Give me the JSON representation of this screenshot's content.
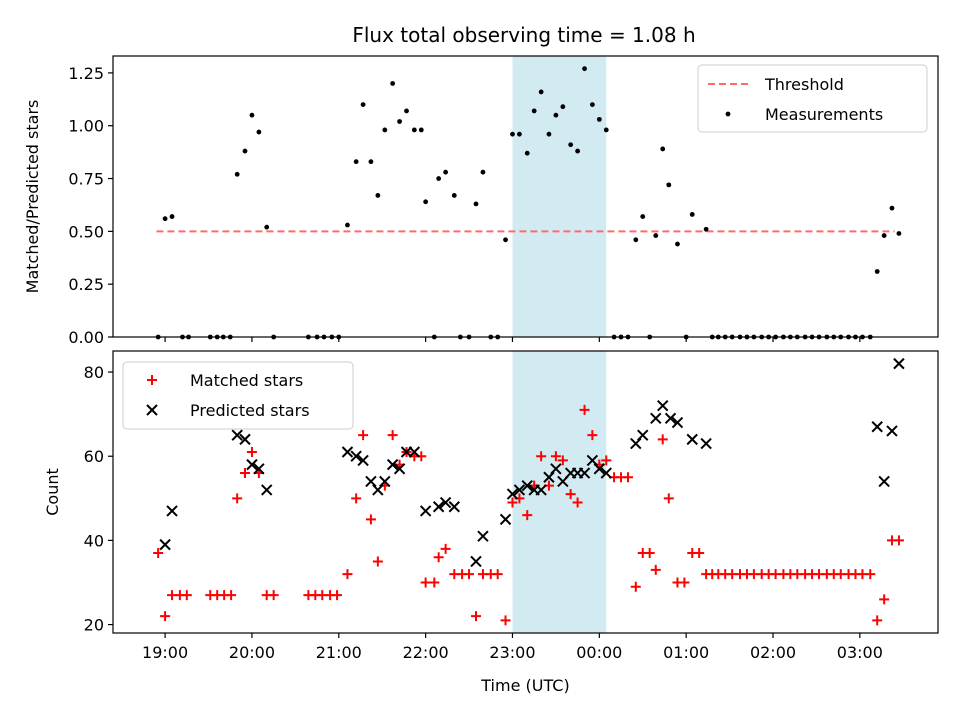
{
  "title": "Flux total observing time = 1.08 h",
  "colors": {
    "threshold": "#ff6b6b",
    "measurement": "#000000",
    "matched": "#ff0000",
    "predicted": "#000000",
    "highlight": "#add8e6"
  },
  "chart_data": [
    {
      "type": "scatter",
      "ylabel": "Matched/Predicted stars",
      "xlabel": "",
      "x_unit": "hours since 19:00 UTC",
      "xlim": [
        -0.6,
        8.9
      ],
      "ylim": [
        0,
        1.33
      ],
      "yticks": [
        0.0,
        0.25,
        0.5,
        0.75,
        1.0,
        1.25
      ],
      "ytick_labels": [
        "0.00",
        "0.25",
        "0.50",
        "0.75",
        "1.00",
        "1.25"
      ],
      "grid": false,
      "legend": {
        "placement": "top-right",
        "entries": [
          "Threshold",
          "Measurements"
        ]
      },
      "highlight_span": [
        4.0,
        5.08
      ],
      "threshold": {
        "name": "Threshold",
        "y": 0.5,
        "x_range": [
          -0.1,
          8.4
        ]
      },
      "series": [
        {
          "name": "Measurements",
          "points": [
            [
              -0.08,
              0.0
            ],
            [
              0.0,
              0.56
            ],
            [
              0.08,
              0.57
            ],
            [
              0.2,
              0.0
            ],
            [
              0.27,
              0.0
            ],
            [
              0.52,
              0.0
            ],
            [
              0.6,
              0.0
            ],
            [
              0.67,
              0.0
            ],
            [
              0.75,
              0.0
            ],
            [
              0.83,
              0.77
            ],
            [
              0.92,
              0.88
            ],
            [
              1.0,
              1.05
            ],
            [
              1.08,
              0.97
            ],
            [
              1.17,
              0.52
            ],
            [
              1.25,
              0.0
            ],
            [
              1.65,
              0.0
            ],
            [
              1.75,
              0.0
            ],
            [
              1.83,
              0.0
            ],
            [
              1.92,
              0.0
            ],
            [
              2.0,
              0.0
            ],
            [
              2.1,
              0.53
            ],
            [
              2.2,
              0.83
            ],
            [
              2.28,
              1.1
            ],
            [
              2.37,
              0.83
            ],
            [
              2.45,
              0.67
            ],
            [
              2.53,
              0.98
            ],
            [
              2.62,
              1.2
            ],
            [
              2.7,
              1.02
            ],
            [
              2.78,
              1.07
            ],
            [
              2.87,
              0.98
            ],
            [
              2.95,
              0.98
            ],
            [
              3.0,
              0.64
            ],
            [
              3.1,
              0.0
            ],
            [
              3.15,
              0.75
            ],
            [
              3.23,
              0.78
            ],
            [
              3.33,
              0.67
            ],
            [
              3.4,
              0.0
            ],
            [
              3.5,
              0.0
            ],
            [
              3.58,
              0.63
            ],
            [
              3.66,
              0.78
            ],
            [
              3.75,
              0.0
            ],
            [
              3.83,
              0.0
            ],
            [
              3.92,
              0.46
            ],
            [
              4.0,
              0.96
            ],
            [
              4.08,
              0.96
            ],
            [
              4.17,
              0.87
            ],
            [
              4.25,
              1.07
            ],
            [
              4.33,
              1.16
            ],
            [
              4.42,
              0.96
            ],
            [
              4.5,
              1.05
            ],
            [
              4.58,
              1.09
            ],
            [
              4.67,
              0.91
            ],
            [
              4.75,
              0.88
            ],
            [
              4.83,
              1.27
            ],
            [
              4.92,
              1.1
            ],
            [
              5.0,
              1.03
            ],
            [
              5.08,
              0.98
            ],
            [
              5.17,
              0.0
            ],
            [
              5.25,
              0.0
            ],
            [
              5.33,
              0.0
            ],
            [
              5.42,
              0.46
            ],
            [
              5.5,
              0.57
            ],
            [
              5.58,
              0.0
            ],
            [
              5.65,
              0.48
            ],
            [
              5.73,
              0.89
            ],
            [
              5.8,
              0.72
            ],
            [
              5.9,
              0.44
            ],
            [
              6.0,
              0.0
            ],
            [
              6.07,
              0.58
            ],
            [
              6.23,
              0.51
            ],
            [
              6.3,
              0.0
            ],
            [
              6.37,
              0.0
            ],
            [
              6.45,
              0.0
            ],
            [
              6.53,
              0.0
            ],
            [
              6.62,
              0.0
            ],
            [
              6.7,
              0.0
            ],
            [
              6.78,
              0.0
            ],
            [
              6.87,
              0.0
            ],
            [
              6.95,
              0.0
            ],
            [
              7.03,
              0.0
            ],
            [
              7.12,
              0.0
            ],
            [
              7.2,
              0.0
            ],
            [
              7.28,
              0.0
            ],
            [
              7.37,
              0.0
            ],
            [
              7.45,
              0.0
            ],
            [
              7.53,
              0.0
            ],
            [
              7.62,
              0.0
            ],
            [
              7.7,
              0.0
            ],
            [
              7.78,
              0.0
            ],
            [
              7.87,
              0.0
            ],
            [
              7.95,
              0.0
            ],
            [
              8.03,
              0.0
            ],
            [
              8.12,
              0.0
            ],
            [
              8.2,
              0.31
            ],
            [
              8.28,
              0.48
            ],
            [
              8.37,
              0.61
            ],
            [
              8.45,
              0.49
            ]
          ]
        }
      ]
    },
    {
      "type": "scatter",
      "ylabel": "Count",
      "xlabel": "Time (UTC)",
      "x_unit": "hours since 19:00 UTC",
      "xlim": [
        -0.6,
        8.9
      ],
      "ylim": [
        18,
        85
      ],
      "yticks": [
        20,
        40,
        60,
        80
      ],
      "ytick_labels": [
        "20",
        "40",
        "60",
        "80"
      ],
      "xticks": [
        0,
        1,
        2,
        3,
        4,
        5,
        6,
        7,
        8
      ],
      "xtick_labels": [
        "19:00",
        "20:00",
        "21:00",
        "22:00",
        "23:00",
        "00:00",
        "01:00",
        "02:00",
        "03:00"
      ],
      "grid": false,
      "legend": {
        "placement": "top-left",
        "entries": [
          "Matched stars",
          "Predicted stars"
        ]
      },
      "highlight_span": [
        4.0,
        5.08
      ],
      "series": [
        {
          "name": "Matched stars",
          "marker": "plus",
          "points": [
            [
              -0.08,
              37
            ],
            [
              0.0,
              22
            ],
            [
              0.08,
              27
            ],
            [
              0.17,
              27
            ],
            [
              0.25,
              27
            ],
            [
              0.52,
              27
            ],
            [
              0.6,
              27
            ],
            [
              0.68,
              27
            ],
            [
              0.76,
              27
            ],
            [
              0.83,
              50
            ],
            [
              0.92,
              56
            ],
            [
              1.0,
              61
            ],
            [
              1.08,
              56
            ],
            [
              1.17,
              27
            ],
            [
              1.25,
              27
            ],
            [
              1.65,
              27
            ],
            [
              1.73,
              27
            ],
            [
              1.81,
              27
            ],
            [
              1.9,
              27
            ],
            [
              1.98,
              27
            ],
            [
              2.1,
              32
            ],
            [
              2.2,
              50
            ],
            [
              2.28,
              65
            ],
            [
              2.37,
              45
            ],
            [
              2.45,
              35
            ],
            [
              2.53,
              53
            ],
            [
              2.62,
              65
            ],
            [
              2.7,
              58
            ],
            [
              2.78,
              61
            ],
            [
              2.87,
              60
            ],
            [
              2.95,
              60
            ],
            [
              3.0,
              30
            ],
            [
              3.1,
              30
            ],
            [
              3.15,
              36
            ],
            [
              3.23,
              38
            ],
            [
              3.33,
              32
            ],
            [
              3.42,
              32
            ],
            [
              3.5,
              32
            ],
            [
              3.58,
              22
            ],
            [
              3.66,
              32
            ],
            [
              3.75,
              32
            ],
            [
              3.83,
              32
            ],
            [
              3.92,
              21
            ],
            [
              4.0,
              49
            ],
            [
              4.08,
              50
            ],
            [
              4.17,
              46
            ],
            [
              4.25,
              53
            ],
            [
              4.33,
              60
            ],
            [
              4.42,
              53
            ],
            [
              4.5,
              60
            ],
            [
              4.58,
              59
            ],
            [
              4.67,
              51
            ],
            [
              4.75,
              49
            ],
            [
              4.83,
              71
            ],
            [
              4.92,
              65
            ],
            [
              5.0,
              58
            ],
            [
              5.08,
              59
            ],
            [
              5.17,
              55
            ],
            [
              5.25,
              55
            ],
            [
              5.33,
              55
            ],
            [
              5.42,
              29
            ],
            [
              5.5,
              37
            ],
            [
              5.58,
              37
            ],
            [
              5.65,
              33
            ],
            [
              5.73,
              64
            ],
            [
              5.8,
              50
            ],
            [
              5.9,
              30
            ],
            [
              5.98,
              30
            ],
            [
              6.07,
              37
            ],
            [
              6.15,
              37
            ],
            [
              6.23,
              32
            ],
            [
              6.3,
              32
            ],
            [
              6.37,
              32
            ],
            [
              6.45,
              32
            ],
            [
              6.53,
              32
            ],
            [
              6.62,
              32
            ],
            [
              6.7,
              32
            ],
            [
              6.78,
              32
            ],
            [
              6.87,
              32
            ],
            [
              6.95,
              32
            ],
            [
              7.03,
              32
            ],
            [
              7.12,
              32
            ],
            [
              7.2,
              32
            ],
            [
              7.28,
              32
            ],
            [
              7.37,
              32
            ],
            [
              7.45,
              32
            ],
            [
              7.53,
              32
            ],
            [
              7.62,
              32
            ],
            [
              7.7,
              32
            ],
            [
              7.78,
              32
            ],
            [
              7.87,
              32
            ],
            [
              7.95,
              32
            ],
            [
              8.03,
              32
            ],
            [
              8.12,
              32
            ],
            [
              8.2,
              21
            ],
            [
              8.28,
              26
            ],
            [
              8.37,
              40
            ],
            [
              8.45,
              40
            ]
          ]
        },
        {
          "name": "Predicted stars",
          "marker": "x",
          "points": [
            [
              0.0,
              39
            ],
            [
              0.08,
              47
            ],
            [
              0.83,
              65
            ],
            [
              0.92,
              64
            ],
            [
              1.0,
              58
            ],
            [
              1.08,
              57
            ],
            [
              1.17,
              52
            ],
            [
              2.1,
              61
            ],
            [
              2.2,
              60
            ],
            [
              2.28,
              59
            ],
            [
              2.37,
              54
            ],
            [
              2.45,
              52
            ],
            [
              2.53,
              54
            ],
            [
              2.62,
              58
            ],
            [
              2.7,
              57
            ],
            [
              2.78,
              61
            ],
            [
              2.87,
              61
            ],
            [
              3.0,
              47
            ],
            [
              3.15,
              48
            ],
            [
              3.23,
              49
            ],
            [
              3.33,
              48
            ],
            [
              3.58,
              35
            ],
            [
              3.66,
              41
            ],
            [
              3.92,
              45
            ],
            [
              4.0,
              51
            ],
            [
              4.08,
              52
            ],
            [
              4.17,
              53
            ],
            [
              4.25,
              52
            ],
            [
              4.33,
              52
            ],
            [
              4.42,
              55
            ],
            [
              4.5,
              57
            ],
            [
              4.58,
              54
            ],
            [
              4.67,
              56
            ],
            [
              4.75,
              56
            ],
            [
              4.83,
              56
            ],
            [
              4.92,
              59
            ],
            [
              5.0,
              57
            ],
            [
              5.08,
              56
            ],
            [
              5.42,
              63
            ],
            [
              5.5,
              65
            ],
            [
              5.65,
              69
            ],
            [
              5.73,
              72
            ],
            [
              5.82,
              69
            ],
            [
              5.9,
              68
            ],
            [
              6.07,
              64
            ],
            [
              6.23,
              63
            ],
            [
              8.2,
              67
            ],
            [
              8.28,
              54
            ],
            [
              8.37,
              66
            ],
            [
              8.45,
              82
            ]
          ]
        }
      ]
    }
  ]
}
